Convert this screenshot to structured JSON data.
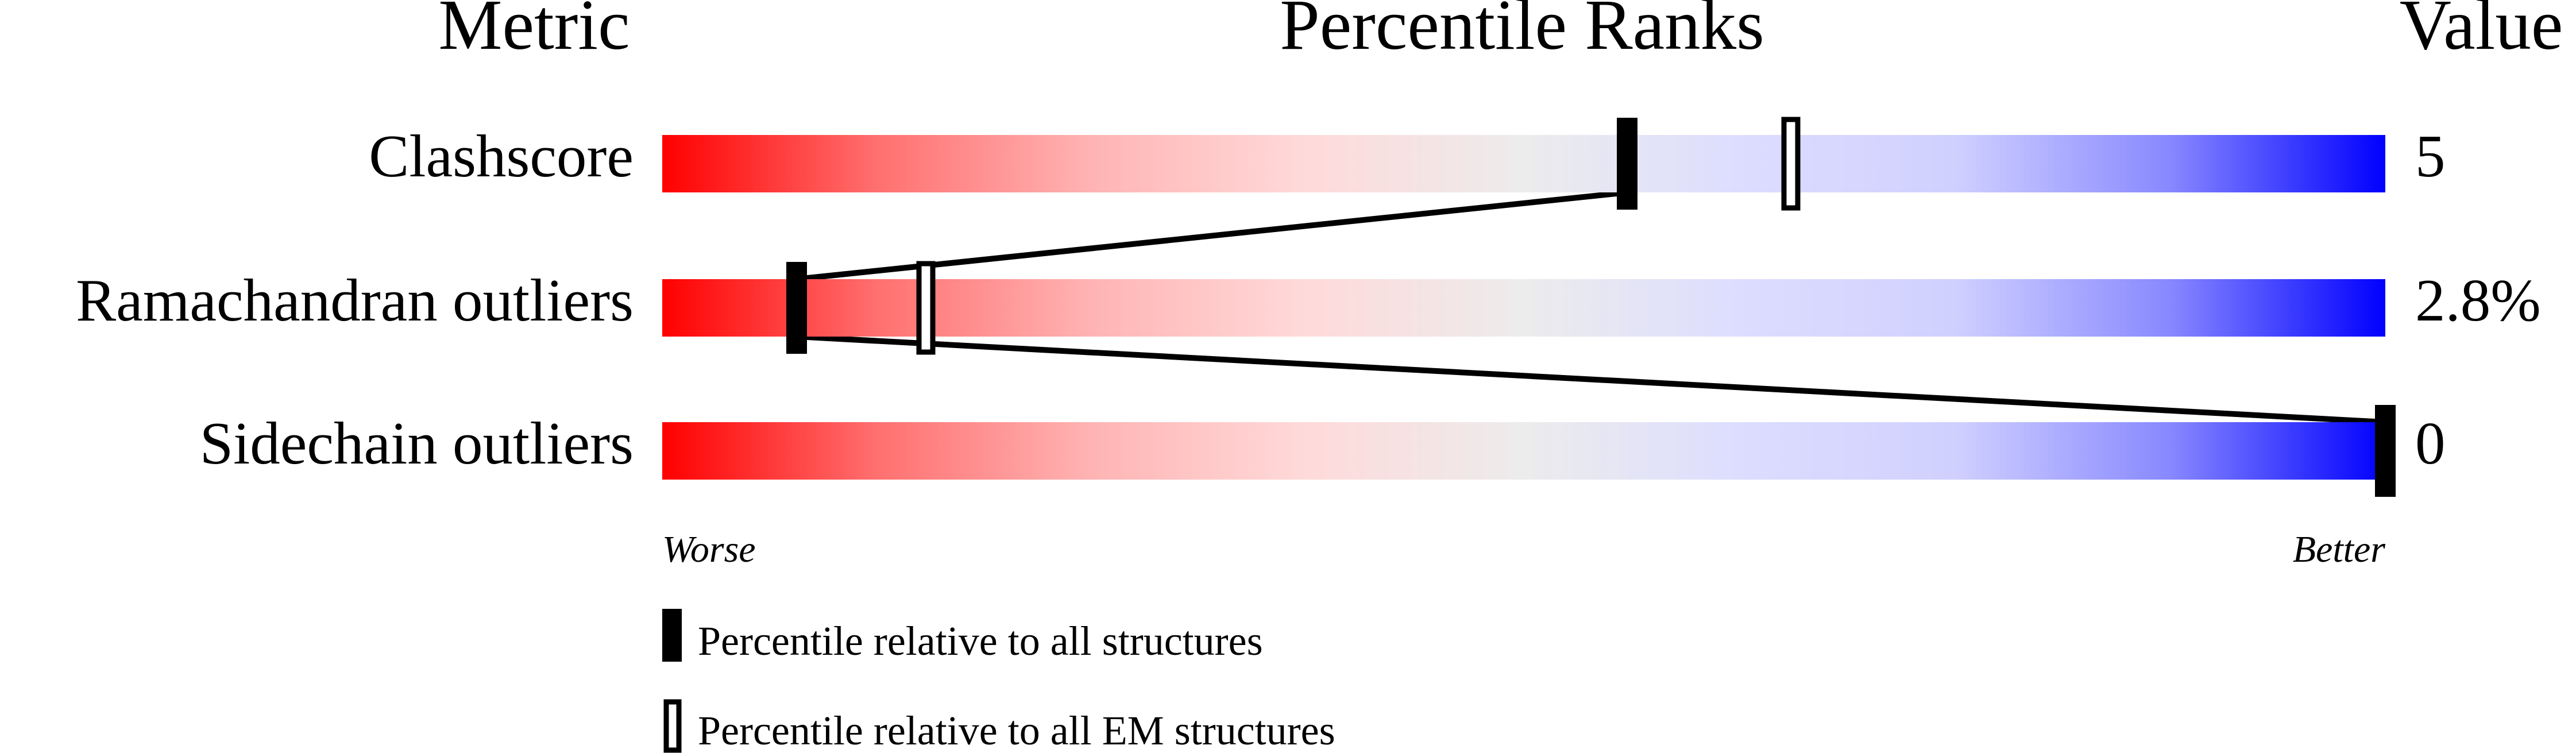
{
  "chart_data": {
    "type": "percentile-bar",
    "headers": {
      "metric": "Metric",
      "ranks": "Percentile Ranks",
      "value": "Value"
    },
    "xlim": [
      0,
      100
    ],
    "axis_labels": {
      "left": "Worse",
      "right": "Better"
    },
    "gradient_colors": [
      "#ff0000",
      "#ff7070",
      "#ffb4b4",
      "#ffdada",
      "#ececec",
      "#ddddff",
      "#d0d0ff",
      "#8888ff",
      "#0000ff"
    ],
    "metrics": [
      {
        "name": "Clashscore",
        "value": "5",
        "percentile_all": 56,
        "percentile_em": 65.5
      },
      {
        "name": "Ramachandran outliers",
        "value": "2.8%",
        "percentile_all": 7.8,
        "percentile_em": 15.3
      },
      {
        "name": "Sidechain outliers",
        "value": "0",
        "percentile_all": 100,
        "percentile_em": null
      }
    ],
    "legend": [
      {
        "marker": "filled",
        "label": "Percentile relative to all structures"
      },
      {
        "marker": "open",
        "label": "Percentile relative to all EM structures"
      }
    ]
  }
}
